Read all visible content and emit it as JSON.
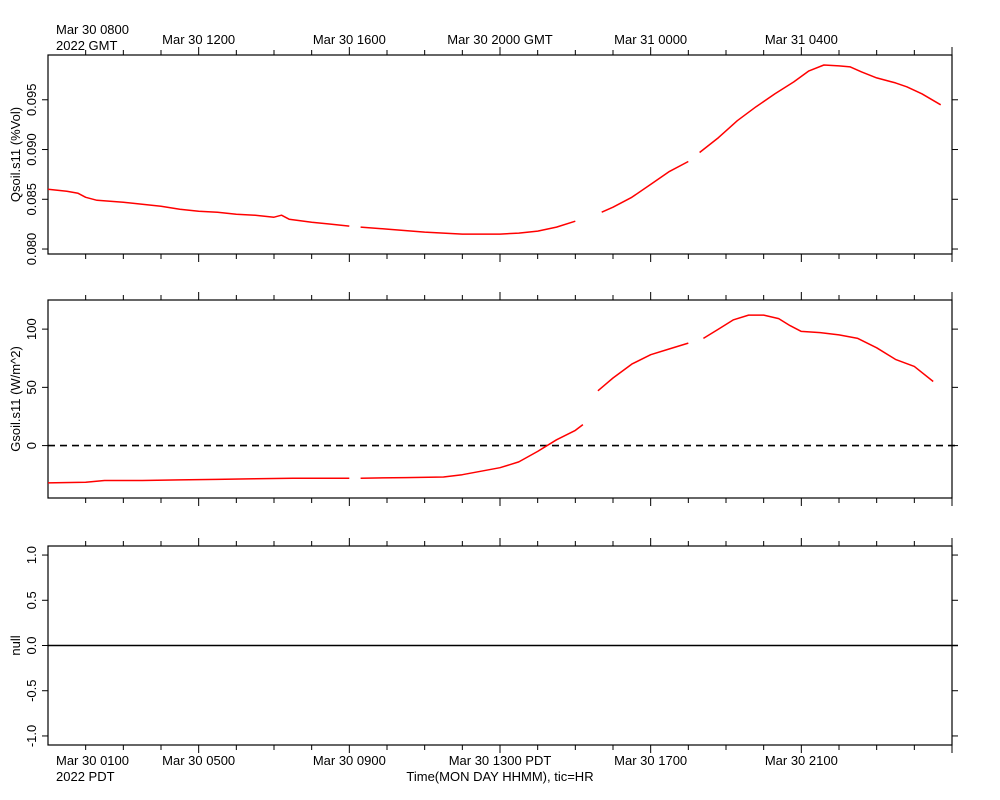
{
  "header": {
    "gmt_first_line": "Mar 30 0800",
    "gmt_second_line": "2022 GMT",
    "gmt_ticks": [
      "Mar 30 1200",
      "Mar 30 1600",
      "Mar 30 2000 GMT",
      "Mar 31 0000",
      "Mar 31 0400"
    ]
  },
  "footer": {
    "pdt_first_line": "Mar 30 0100",
    "pdt_second_line": "2022 PDT",
    "pdt_ticks": [
      "Mar 30 0500",
      "Mar 30 0900",
      "Mar 30 1300 PDT",
      "Mar 30 1700",
      "Mar 30 2100"
    ],
    "xlabel": "Time(MON DAY HHMM), tic=HR"
  },
  "colors": {
    "series": "#ff0000",
    "axis": "#000000",
    "zero_line": "#000000"
  },
  "chart_data": [
    {
      "type": "line",
      "title": "",
      "ylabel": "Qsoil.s11 (%Vol)",
      "xlabel": "Time(MON DAY HHMM), tic=HR",
      "x_unit": "hours since Mar 30 0800 GMT",
      "xlim": [
        0,
        24
      ],
      "ylim": [
        0.0795,
        0.0995
      ],
      "yticks": [
        0.08,
        0.085,
        0.09,
        0.095
      ],
      "ytick_labels": [
        "0.080",
        "0.085",
        "0.090",
        "0.095"
      ],
      "grid": false,
      "series": [
        {
          "color": "#ff0000",
          "segments": [
            [
              [
                0,
                0.086
              ],
              [
                0.5,
                0.0858
              ],
              [
                0.8,
                0.0856
              ],
              [
                1.0,
                0.0852
              ],
              [
                1.3,
                0.0849
              ],
              [
                2.0,
                0.0847
              ],
              [
                2.5,
                0.0845
              ],
              [
                3.0,
                0.0843
              ],
              [
                3.5,
                0.084
              ],
              [
                4.0,
                0.0838
              ],
              [
                4.5,
                0.0837
              ],
              [
                5.0,
                0.0835
              ],
              [
                5.5,
                0.0834
              ],
              [
                6.0,
                0.0832
              ],
              [
                6.2,
                0.0834
              ],
              [
                6.4,
                0.083
              ],
              [
                7.0,
                0.0827
              ],
              [
                7.5,
                0.0825
              ],
              [
                8.0,
                0.0823
              ]
            ],
            [
              [
                8.3,
                0.0822
              ],
              [
                9.0,
                0.082
              ],
              [
                10.0,
                0.0817
              ],
              [
                11.0,
                0.0815
              ],
              [
                12.0,
                0.0815
              ],
              [
                12.5,
                0.0816
              ],
              [
                13.0,
                0.0818
              ],
              [
                13.5,
                0.0822
              ],
              [
                14.0,
                0.0828
              ]
            ],
            [
              [
                14.7,
                0.0837
              ],
              [
                15.0,
                0.0842
              ],
              [
                15.5,
                0.0852
              ],
              [
                16.0,
                0.0865
              ],
              [
                16.5,
                0.0878
              ],
              [
                17.0,
                0.0888
              ]
            ],
            [
              [
                17.3,
                0.0897
              ],
              [
                17.8,
                0.0912
              ],
              [
                18.3,
                0.0929
              ],
              [
                18.8,
                0.0943
              ],
              [
                19.3,
                0.0956
              ],
              [
                19.8,
                0.0968
              ],
              [
                20.2,
                0.0979
              ],
              [
                20.6,
                0.0985
              ],
              [
                21.0,
                0.0984
              ],
              [
                21.3,
                0.0983
              ],
              [
                21.6,
                0.0978
              ],
              [
                22.0,
                0.0972
              ],
              [
                22.5,
                0.0967
              ],
              [
                22.8,
                0.0963
              ],
              [
                23.2,
                0.0956
              ],
              [
                23.7,
                0.0945
              ]
            ]
          ]
        }
      ]
    },
    {
      "type": "line",
      "title": "",
      "ylabel": "Gsoil.s11 (W/m^2)",
      "xlabel": "Time(MON DAY HHMM), tic=HR",
      "x_unit": "hours since Mar 30 0800 GMT",
      "xlim": [
        0,
        24
      ],
      "ylim": [
        -45,
        125
      ],
      "yticks": [
        0,
        50,
        100
      ],
      "ytick_labels": [
        "0",
        "50",
        "100"
      ],
      "reference_line": {
        "y": 0,
        "style": "dashed"
      },
      "grid": false,
      "series": [
        {
          "color": "#ff0000",
          "segments": [
            [
              [
                0,
                -32
              ],
              [
                1.0,
                -31.5
              ],
              [
                1.5,
                -30
              ],
              [
                2.5,
                -30
              ],
              [
                3.5,
                -29.5
              ],
              [
                4.5,
                -29
              ],
              [
                5.5,
                -28.5
              ],
              [
                6.5,
                -28
              ],
              [
                7.5,
                -28
              ],
              [
                8.0,
                -28
              ]
            ],
            [
              [
                8.3,
                -28
              ],
              [
                9.5,
                -27.5
              ],
              [
                10.5,
                -27
              ],
              [
                11.0,
                -25
              ],
              [
                11.5,
                -22
              ],
              [
                12.0,
                -19
              ],
              [
                12.5,
                -14
              ],
              [
                13.0,
                -5
              ],
              [
                13.5,
                5
              ],
              [
                14.0,
                13
              ],
              [
                14.2,
                18
              ]
            ],
            [
              [
                14.6,
                47
              ],
              [
                15.0,
                58
              ],
              [
                15.5,
                70
              ],
              [
                16.0,
                78
              ],
              [
                16.5,
                83
              ],
              [
                17.0,
                88
              ]
            ],
            [
              [
                17.4,
                92
              ],
              [
                17.8,
                100
              ],
              [
                18.2,
                108
              ],
              [
                18.6,
                112
              ],
              [
                19.0,
                112
              ],
              [
                19.4,
                109
              ],
              [
                19.7,
                103
              ],
              [
                20.0,
                98
              ],
              [
                20.5,
                97
              ],
              [
                21.0,
                95
              ],
              [
                21.5,
                92
              ],
              [
                22.0,
                84
              ],
              [
                22.5,
                74
              ],
              [
                23.0,
                68
              ],
              [
                23.5,
                55
              ]
            ]
          ]
        }
      ]
    },
    {
      "type": "line",
      "title": "",
      "ylabel": "null",
      "xlabel": "Time(MON DAY HHMM), tic=HR",
      "x_unit": "hours since Mar 30 0800 GMT",
      "xlim": [
        0,
        24
      ],
      "ylim": [
        -1.1,
        1.1
      ],
      "yticks": [
        -1.0,
        -0.5,
        0.0,
        0.5,
        1.0
      ],
      "ytick_labels": [
        "-1.0",
        "-0.5",
        "0.0",
        "0.5",
        "1.0"
      ],
      "reference_line": {
        "y": 0,
        "style": "solid"
      },
      "grid": false,
      "series": []
    }
  ]
}
